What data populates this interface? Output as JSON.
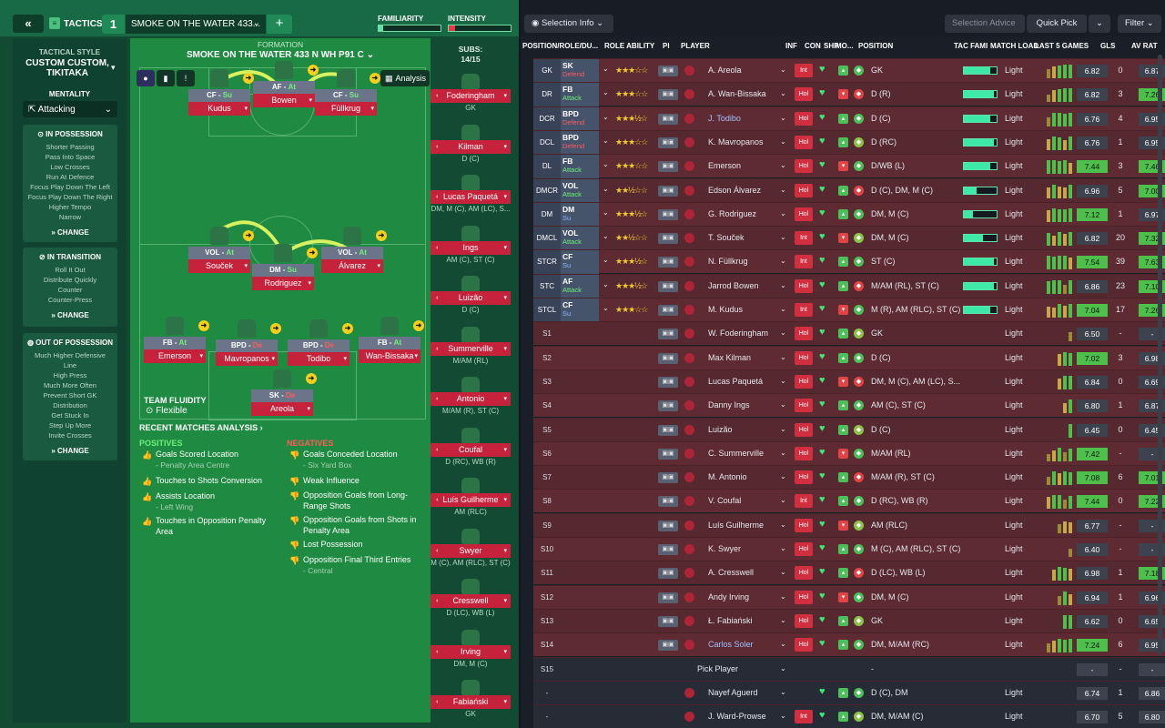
{
  "topbar": {
    "back": "«",
    "tactics": "TACTICS",
    "num": "1",
    "name": "SMOKE ON THE WATER 433...",
    "add": "+",
    "familiarity": "FAMILIARITY",
    "intensity": "INTENSITY"
  },
  "left": {
    "style_h": "TACTICAL STYLE",
    "style": "CUSTOM CUSTOM, TIKITAKA",
    "mentality_h": "MENTALITY",
    "mentality": "Attacking",
    "inpos": {
      "h": "IN POSSESSION",
      "items": [
        "Shorter Passing",
        "Pass Into Space",
        "Low Crosses",
        "Run At Defence",
        "Focus Play Down The Left",
        "Focus Play Down The Right",
        "Higher Tempo",
        "Narrow"
      ],
      "change": "CHANGE"
    },
    "intrans": {
      "h": "IN TRANSITION",
      "items": [
        "Roll It Out",
        "Distribute Quickly",
        "Counter",
        "Counter-Press"
      ],
      "change": "CHANGE"
    },
    "outpos": {
      "h": "OUT OF POSSESSION",
      "items": [
        "Much Higher Defensive",
        "Line",
        "High Press",
        "Much More Often",
        "Prevent Short GK",
        "Distribution",
        "Get Stuck In",
        "Step Up More",
        "Invite Crosses"
      ],
      "change": "CHANGE"
    }
  },
  "formation": {
    "h": "FORMATION",
    "name": "SMOKE ON THE WATER 433 N WH P91 C",
    "analysis": "Analysis",
    "fluidity_h": "TEAM FLUIDITY",
    "fluidity": "Flexible"
  },
  "players": [
    {
      "r": "CF",
      "d": "Su",
      "n": "Kudus"
    },
    {
      "r": "AF",
      "d": "At",
      "n": "Bowen"
    },
    {
      "r": "CF",
      "d": "Su",
      "n": "Füllkrug"
    },
    {
      "r": "VOL",
      "d": "At",
      "n": "Souček"
    },
    {
      "r": "DM",
      "d": "Su",
      "n": "Rodriguez"
    },
    {
      "r": "VOL",
      "d": "At",
      "n": "Álvarez"
    },
    {
      "r": "FB",
      "d": "At",
      "n": "Emerson"
    },
    {
      "r": "BPD",
      "d": "De",
      "n": "Mavropanos"
    },
    {
      "r": "BPD",
      "d": "De",
      "n": "Todibo"
    },
    {
      "r": "FB",
      "d": "At",
      "n": "Wan-Bissaka"
    },
    {
      "r": "SK",
      "d": "De",
      "n": "Areola"
    }
  ],
  "analysis": {
    "h": "RECENT MATCHES ANALYSIS ›",
    "pos_h": "POSITIVES",
    "neg_h": "NEGATIVES",
    "pos": [
      {
        "t": "Goals Scored Location",
        "s": "- Penalty Area Centre"
      },
      {
        "t": "Touches to Shots Conversion",
        "s": ""
      },
      {
        "t": "Assists Location",
        "s": "- Left Wing"
      },
      {
        "t": "Touches in Opposition Penalty Area",
        "s": ""
      }
    ],
    "neg": [
      {
        "t": "Goals Conceded Location",
        "s": "- Six Yard Box"
      },
      {
        "t": "Weak Influence",
        "s": ""
      },
      {
        "t": "Opposition Goals from Long-Range Shots",
        "s": ""
      },
      {
        "t": "Opposition Goals from Shots in Penalty Area",
        "s": ""
      },
      {
        "t": "Lost Possession",
        "s": ""
      },
      {
        "t": "Opposition Final Third Entries",
        "s": "- Central"
      }
    ]
  },
  "subs": {
    "h": "SUBS:",
    "count": "14/15",
    "list": [
      {
        "n": "Foderingham",
        "p": "GK"
      },
      {
        "n": "Kilman",
        "p": "D (C)"
      },
      {
        "n": "Lucas Paquetá",
        "p": "DM, M (C), AM (LC), S..."
      },
      {
        "n": "Ings",
        "p": "AM (C), ST (C)"
      },
      {
        "n": "Luizão",
        "p": "D (C)"
      },
      {
        "n": "Summerville",
        "p": "M/AM (RL)"
      },
      {
        "n": "Antonio",
        "p": "M/AM (R), ST (C)"
      },
      {
        "n": "Coufal",
        "p": "D (RC), WB (R)"
      },
      {
        "n": "Luís Guilherme",
        "p": "AM (RLC)"
      },
      {
        "n": "Swyer",
        "p": "M (C), AM (RLC), ST (C)"
      },
      {
        "n": "Cresswell",
        "p": "D (LC), WB (L)"
      },
      {
        "n": "Irving",
        "p": "DM, M (C)"
      },
      {
        "n": "Fabiański",
        "p": "GK"
      }
    ]
  },
  "rtop": {
    "sel": "Selection Info",
    "advice": "Selection Advice",
    "quick": "Quick Pick",
    "filter": "Filter"
  },
  "headers": [
    "POSITION/ROLE/DU...",
    "ROLE ABILITY",
    "PI",
    "PLAYER",
    "INF",
    "CON",
    "SHP",
    "MO...",
    "POSITION",
    "TAC FAMI",
    "MATCH LOAD",
    "LAST 5 GAMES",
    "GLS",
    "AV RAT"
  ],
  "rows": [
    {
      "pos": "GK",
      "r": "SK",
      "d": "Defend",
      "st": "★★★☆☆",
      "n": "A. Areola",
      "inf": "Int",
      "p": "GK",
      "ml": "Light",
      "rt": "6.82",
      "g": "0",
      "av": "6.87"
    },
    {
      "pos": "DR",
      "r": "FB",
      "d": "Attack",
      "st": "★★★☆☆",
      "n": "A. Wan-Bissaka",
      "inf": "Hol",
      "p": "D (R)",
      "ml": "Light",
      "rt": "6.82",
      "g": "3",
      "av": "7.26"
    },
    {
      "pos": "DCR",
      "r": "BPD",
      "d": "Defend",
      "st": "★★★½☆",
      "n": "J. Todibo",
      "inf": "Hol",
      "p": "D (C)",
      "ml": "Light",
      "rt": "6.76",
      "g": "4",
      "av": "6.95"
    },
    {
      "pos": "DCL",
      "r": "BPD",
      "d": "Defend",
      "st": "★★★☆☆",
      "n": "K. Mavropanos",
      "inf": "Hol",
      "p": "D (RC)",
      "ml": "Light",
      "rt": "6.76",
      "g": "1",
      "av": "6.95"
    },
    {
      "pos": "DL",
      "r": "FB",
      "d": "Attack",
      "st": "★★★☆☆",
      "n": "Emerson",
      "inf": "Hol",
      "p": "D/WB (L)",
      "ml": "Light",
      "rt": "7.44",
      "g": "3",
      "av": "7.46"
    },
    {
      "pos": "DMCR",
      "r": "VOL",
      "d": "Attack",
      "st": "★★½☆☆",
      "n": "Edson Álvarez",
      "inf": "Hol",
      "p": "D (C), DM, M (C)",
      "ml": "Light",
      "rt": "6.96",
      "g": "5",
      "av": "7.00"
    },
    {
      "pos": "DM",
      "r": "DM",
      "d": "Su",
      "st": "★★★½☆",
      "n": "G. Rodriguez",
      "inf": "Hol",
      "p": "DM, M (C)",
      "ml": "Light",
      "rt": "7.12",
      "g": "1",
      "av": "6.97"
    },
    {
      "pos": "DMCL",
      "r": "VOL",
      "d": "Attack",
      "st": "★★½☆☆",
      "n": "T. Souček",
      "inf": "Int",
      "p": "DM, M (C)",
      "ml": "Light",
      "rt": "6.82",
      "g": "20",
      "av": "7.32"
    },
    {
      "pos": "STCR",
      "r": "CF",
      "d": "Su",
      "st": "★★★½☆",
      "n": "N. Füllkrug",
      "inf": "Int",
      "p": "ST (C)",
      "ml": "Light",
      "rt": "7.54",
      "g": "39",
      "av": "7.63"
    },
    {
      "pos": "STC",
      "r": "AF",
      "d": "Attack",
      "st": "★★★½☆",
      "n": "Jarrod Bowen",
      "inf": "Hol",
      "p": "M/AM (RL), ST (C)",
      "ml": "Light",
      "rt": "6.86",
      "g": "23",
      "av": "7.10"
    },
    {
      "pos": "STCL",
      "r": "CF",
      "d": "Su",
      "st": "★★★☆☆",
      "n": "M. Kudus",
      "inf": "Int",
      "p": "M (R), AM (RLC), ST (C)",
      "ml": "Light",
      "rt": "7.04",
      "g": "17",
      "av": "7.26"
    },
    {
      "pos": "S1",
      "n": "W. Foderingham",
      "inf": "Hol",
      "p": "GK",
      "ml": "Light",
      "rt": "6.50",
      "g": "-",
      "av": "-"
    },
    {
      "pos": "S2",
      "n": "Max Kilman",
      "inf": "Hol",
      "p": "D (C)",
      "ml": "Light",
      "rt": "7.02",
      "g": "3",
      "av": "6.98"
    },
    {
      "pos": "S3",
      "n": "Lucas Paquetá",
      "inf": "Hol",
      "p": "DM, M (C), AM (LC), S...",
      "ml": "Light",
      "rt": "6.84",
      "g": "0",
      "av": "6.69"
    },
    {
      "pos": "S4",
      "n": "Danny Ings",
      "inf": "Hol",
      "p": "AM (C), ST (C)",
      "ml": "Light",
      "rt": "6.80",
      "g": "1",
      "av": "6.87"
    },
    {
      "pos": "S5",
      "n": "Luizão",
      "inf": "Hol",
      "p": "D (C)",
      "ml": "Light",
      "rt": "6.45",
      "g": "0",
      "av": "6.45"
    },
    {
      "pos": "S6",
      "n": "C. Summerville",
      "inf": "Hol",
      "p": "M/AM (RL)",
      "ml": "Light",
      "rt": "7.42",
      "g": "-",
      "av": "-"
    },
    {
      "pos": "S7",
      "n": "M. Antonio",
      "inf": "Hol",
      "p": "M/AM (R), ST (C)",
      "ml": "Light",
      "rt": "7.08",
      "g": "6",
      "av": "7.01"
    },
    {
      "pos": "S8",
      "n": "V. Coufal",
      "inf": "Int",
      "p": "D (RC), WB (R)",
      "ml": "Light",
      "rt": "7.44",
      "g": "0",
      "av": "7.22"
    },
    {
      "pos": "S9",
      "n": "Luís Guilherme",
      "inf": "Hol",
      "p": "AM (RLC)",
      "ml": "Light",
      "rt": "6.77",
      "g": "-",
      "av": "-"
    },
    {
      "pos": "S10",
      "n": "K. Swyer",
      "inf": "Hol",
      "p": "M (C), AM (RLC), ST (C)",
      "ml": "Light",
      "rt": "6.40",
      "g": "-",
      "av": "-"
    },
    {
      "pos": "S11",
      "n": "A. Cresswell",
      "inf": "Hol",
      "p": "D (LC), WB (L)",
      "ml": "Light",
      "rt": "6.98",
      "g": "1",
      "av": "7.18"
    },
    {
      "pos": "S12",
      "n": "Andy Irving",
      "inf": "Hol",
      "p": "DM, M (C)",
      "ml": "Light",
      "rt": "6.94",
      "g": "1",
      "av": "6.96"
    },
    {
      "pos": "S13",
      "n": "Ł. Fabiański",
      "inf": "Hol",
      "p": "GK",
      "ml": "Light",
      "rt": "6.62",
      "g": "0",
      "av": "6.65"
    },
    {
      "pos": "S14",
      "n": "Carlos Soler",
      "inf": "Hol",
      "p": "DM, M/AM (RC)",
      "ml": "Light",
      "rt": "7.24",
      "g": "6",
      "av": "6.95"
    },
    {
      "pos": "S15",
      "n": "Pick Player",
      "inf": "",
      "p": "-",
      "ml": "",
      "rt": "-",
      "g": "-",
      "av": "-"
    },
    {
      "pos": "-",
      "n": "Nayef Aguerd",
      "inf": "",
      "p": "D (C), DM",
      "ml": "Light",
      "rt": "6.74",
      "g": "1",
      "av": "6.86"
    },
    {
      "pos": "-",
      "n": "J. Ward-Prowse",
      "inf": "Int",
      "p": "DM, M/AM (C)",
      "ml": "Light",
      "rt": "6.70",
      "g": "5",
      "av": "6.80"
    }
  ]
}
